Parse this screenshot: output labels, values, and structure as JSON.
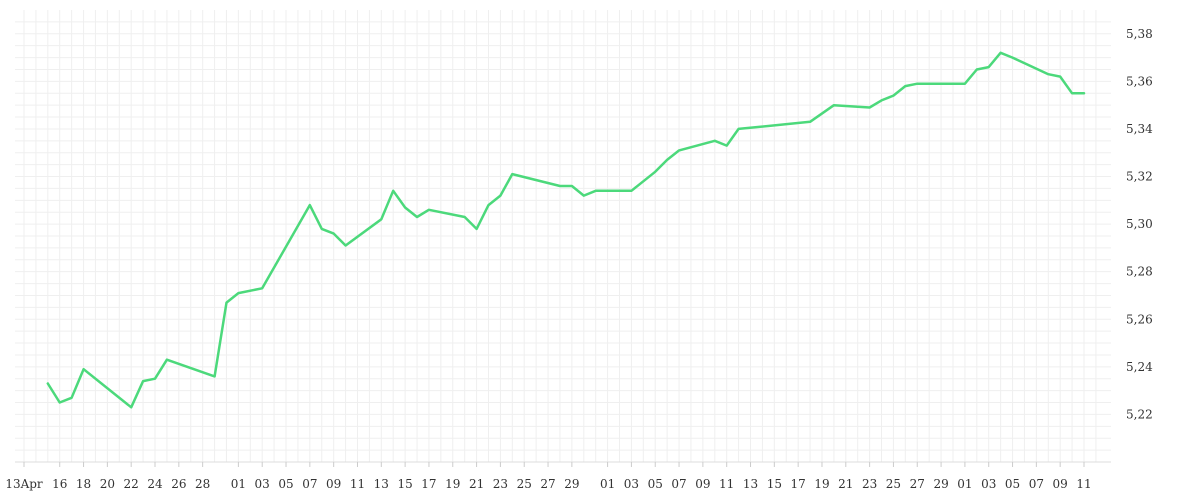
{
  "chart_data": {
    "type": "line",
    "title": "",
    "xlabel": "",
    "ylabel": "",
    "grid": true,
    "line_color": "#4cd97b",
    "y_axis_position": "right",
    "ylim": [
      5.2,
      5.39
    ],
    "y_ticks": [
      "5,22",
      "5,24",
      "5,26",
      "5,28",
      "5,30",
      "5,32",
      "5,34",
      "5,36",
      "5,38"
    ],
    "x_ticks": [
      "13Apr",
      "16",
      "18",
      "20",
      "22",
      "24",
      "26",
      "28",
      "01",
      "03",
      "05",
      "07",
      "09",
      "11",
      "13",
      "15",
      "17",
      "19",
      "21",
      "23",
      "25",
      "27",
      "29",
      "01",
      "03",
      "05",
      "07",
      "09",
      "11",
      "13",
      "15",
      "17",
      "19",
      "21",
      "23",
      "25",
      "27",
      "29",
      "01",
      "03",
      "05",
      "07",
      "09",
      "11"
    ],
    "series": [
      {
        "x": [
          "Apr 15",
          "Apr 16",
          "Apr 17",
          "Apr 18",
          "Apr 22",
          "Apr 23",
          "Apr 24",
          "Apr 25",
          "Apr 29",
          "Apr 30",
          "May 01",
          "May 03",
          "May 07",
          "May 08",
          "May 09",
          "May 10",
          "May 13",
          "May 14",
          "May 15",
          "May 16",
          "May 17",
          "May 20",
          "May 21",
          "May 22",
          "May 23",
          "May 24",
          "May 28",
          "May 29",
          "May 30",
          "May 31",
          "Jun 03",
          "Jun 04",
          "Jun 05",
          "Jun 06",
          "Jun 07",
          "Jun 10",
          "Jun 11",
          "Jun 12",
          "Jun 18",
          "Jun 20",
          "Jun 23",
          "Jun 24",
          "Jun 25",
          "Jun 26",
          "Jun 27",
          "Jul 01",
          "Jul 02",
          "Jul 03",
          "Jul 04",
          "Jul 05",
          "Jul 08",
          "Jul 09",
          "Jul 10",
          "Jul 11"
        ],
        "values": [
          5.233,
          5.225,
          5.227,
          5.239,
          5.223,
          5.234,
          5.235,
          5.243,
          5.236,
          5.267,
          5.271,
          5.273,
          5.308,
          5.298,
          5.296,
          5.291,
          5.302,
          5.314,
          5.307,
          5.303,
          5.306,
          5.303,
          5.298,
          5.308,
          5.312,
          5.321,
          5.316,
          5.316,
          5.312,
          5.314,
          5.314,
          5.318,
          5.322,
          5.327,
          5.331,
          5.335,
          5.333,
          5.34,
          5.343,
          5.35,
          5.349,
          5.352,
          5.354,
          5.358,
          5.359,
          5.359,
          5.365,
          5.366,
          5.372,
          5.37,
          5.363,
          5.362,
          5.355,
          5.355
        ]
      }
    ]
  }
}
